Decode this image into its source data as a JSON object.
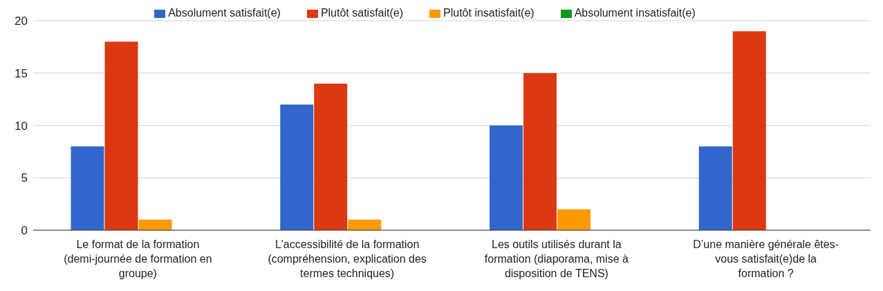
{
  "chart_data": {
    "type": "bar",
    "categories": [
      "Le format de la formation (demi-journée de formation en groupe)",
      "L'accessibilité de la formation (compréhension, explication des termes techniques)",
      "Les outils utilisés durant la formation (diaporama, mise à disposition de TENS)",
      "D’une manière générale êtes-vous satisfait(e)de la formation ?"
    ],
    "series": [
      {
        "name": "Absolument satisfait(e)",
        "color": "#3366cc",
        "values": [
          8,
          12,
          10,
          8
        ]
      },
      {
        "name": "Plutôt satisfait(e)",
        "color": "#dc3912",
        "values": [
          18,
          14,
          15,
          19
        ]
      },
      {
        "name": "Plutôt insatisfait(e)",
        "color": "#ff9900",
        "values": [
          1,
          1,
          2,
          0
        ]
      },
      {
        "name": "Absolument insatisfait(e)",
        "color": "#109618",
        "values": [
          0,
          0,
          0,
          0
        ]
      }
    ],
    "ylim": [
      0,
      20
    ],
    "yticks": [
      0,
      5,
      10,
      15,
      20
    ],
    "grid": "y",
    "legend": "top"
  }
}
